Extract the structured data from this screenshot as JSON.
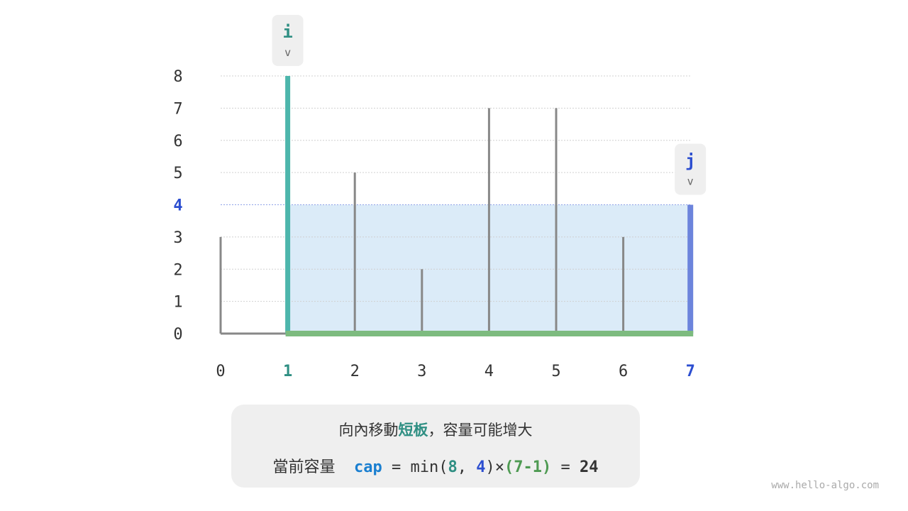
{
  "colors": {
    "i": "#4db6ac",
    "j": "#6c84dc",
    "bar": "#888888",
    "fill": "#dbebf8",
    "bottom": "#7dbb7f",
    "cap": "#1a7fd0",
    "i_text": "#2f8f83",
    "j_text": "#2c4ed0",
    "width_text": "#4e9a52"
  },
  "chart_data": {
    "type": "bar",
    "categories": [
      "0",
      "1",
      "2",
      "3",
      "4",
      "5",
      "6",
      "7"
    ],
    "values": [
      3,
      8,
      5,
      2,
      7,
      7,
      3,
      4
    ],
    "y_ticks": [
      "0",
      "1",
      "2",
      "3",
      "4",
      "5",
      "6",
      "7",
      "8"
    ],
    "ylim": [
      0,
      8
    ],
    "highlight_y": "4",
    "i_index": 1,
    "j_index": 7,
    "grid": true
  },
  "pointers": {
    "i": "i",
    "j": "j",
    "arrow": "v"
  },
  "caption": {
    "line1_pre": "向內移動",
    "line1_hl": "短板",
    "line1_post": "，容量可能增大",
    "label": "當前容量",
    "cap": "cap",
    "eq": " = min(",
    "a": "8",
    "comma": ", ",
    "b": "4",
    "times": ")×",
    "width": "(7-1)",
    "eq2": " = ",
    "result": "24"
  },
  "watermark": "www.hello-algo.com"
}
